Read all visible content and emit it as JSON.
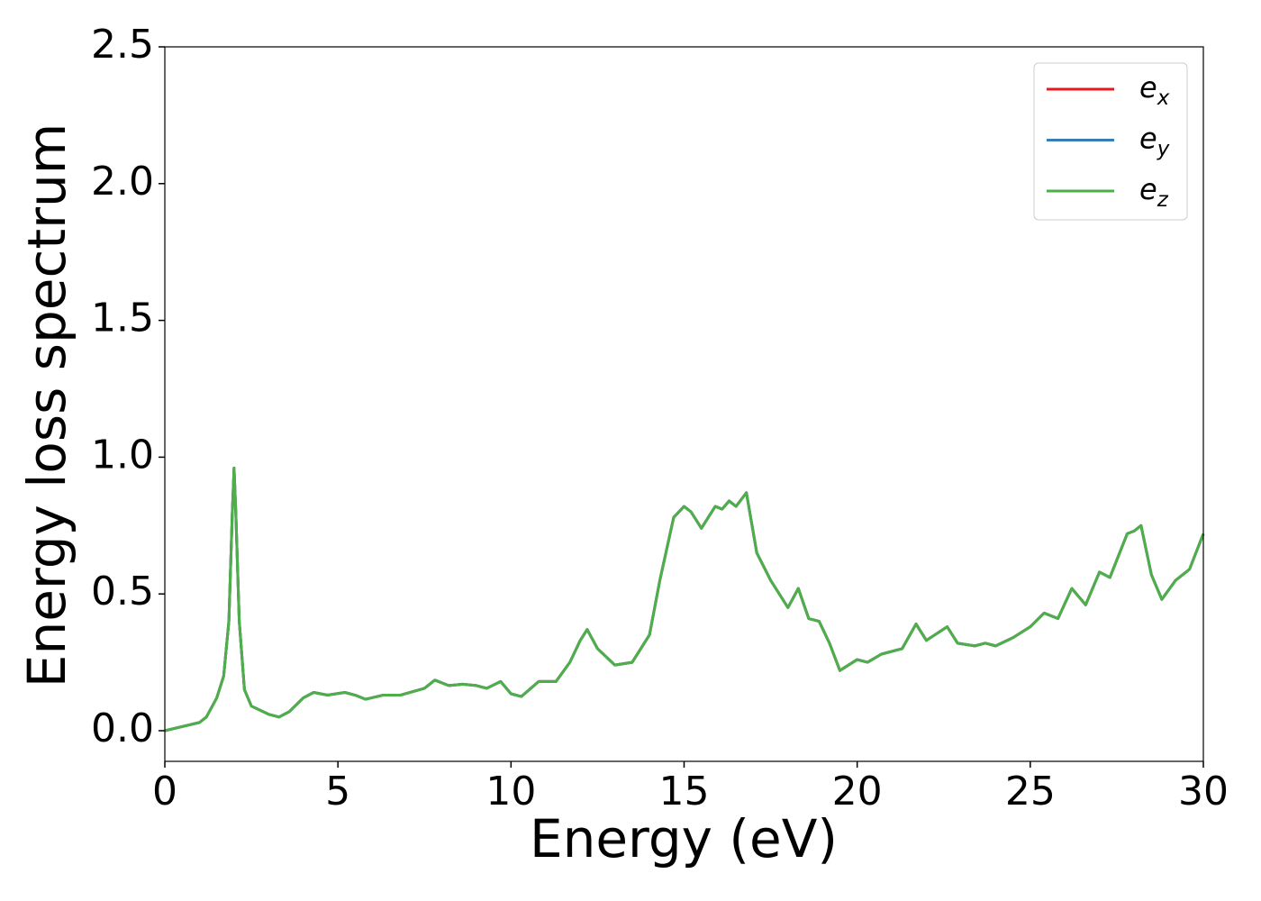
{
  "chart_data": {
    "type": "line",
    "xlabel": "Energy (eV)",
    "ylabel": "Energy loss spectrum",
    "x": [
      0,
      0.5,
      1.0,
      1.2,
      1.5,
      1.7,
      1.85,
      1.95,
      2.0,
      2.05,
      2.15,
      2.3,
      2.5,
      3.0,
      3.3,
      3.6,
      4.0,
      4.3,
      4.7,
      5.2,
      5.5,
      5.8,
      6.3,
      6.8,
      7.5,
      7.8,
      8.2,
      8.6,
      9.0,
      9.3,
      9.7,
      10.0,
      10.3,
      10.8,
      11.3,
      11.7,
      12.0,
      12.2,
      12.5,
      13.0,
      13.5,
      14.0,
      14.3,
      14.7,
      15.0,
      15.2,
      15.5,
      15.9,
      16.1,
      16.3,
      16.5,
      16.8,
      17.1,
      17.5,
      18.0,
      18.3,
      18.6,
      18.9,
      19.2,
      19.5,
      20.0,
      20.3,
      20.7,
      21.3,
      21.7,
      22.0,
      22.6,
      22.9,
      23.4,
      23.7,
      24.0,
      24.5,
      25.0,
      25.4,
      25.8,
      26.2,
      26.6,
      27.0,
      27.3,
      27.8,
      28.0,
      28.2,
      28.5,
      28.8,
      29.2,
      29.6,
      30.0
    ],
    "series": [
      {
        "name": "e_x",
        "color": "#e41a1c",
        "values": [
          0.0,
          0.015,
          0.03,
          0.05,
          0.12,
          0.2,
          0.4,
          0.8,
          0.96,
          0.8,
          0.4,
          0.15,
          0.09,
          0.06,
          0.05,
          0.07,
          0.12,
          0.14,
          0.13,
          0.14,
          0.13,
          0.115,
          0.13,
          0.13,
          0.155,
          0.185,
          0.165,
          0.17,
          0.165,
          0.155,
          0.18,
          0.135,
          0.125,
          0.18,
          0.18,
          0.25,
          0.33,
          0.37,
          0.3,
          0.24,
          0.25,
          0.35,
          0.55,
          0.78,
          0.82,
          0.8,
          0.74,
          0.82,
          0.81,
          0.84,
          0.82,
          0.87,
          0.65,
          0.55,
          0.45,
          0.52,
          0.41,
          0.4,
          0.32,
          0.22,
          0.26,
          0.25,
          0.28,
          0.3,
          0.39,
          0.33,
          0.38,
          0.32,
          0.31,
          0.32,
          0.31,
          0.34,
          0.38,
          0.43,
          0.41,
          0.52,
          0.46,
          0.58,
          0.56,
          0.72,
          0.73,
          0.75,
          0.57,
          0.48,
          0.55,
          0.59,
          0.72
        ]
      },
      {
        "name": "e_y",
        "color": "#377eb8",
        "values": [
          0.0,
          0.015,
          0.03,
          0.05,
          0.12,
          0.2,
          0.4,
          0.8,
          0.96,
          0.8,
          0.4,
          0.15,
          0.09,
          0.06,
          0.05,
          0.07,
          0.12,
          0.14,
          0.13,
          0.14,
          0.13,
          0.115,
          0.13,
          0.13,
          0.155,
          0.185,
          0.165,
          0.17,
          0.165,
          0.155,
          0.18,
          0.135,
          0.125,
          0.18,
          0.18,
          0.25,
          0.33,
          0.37,
          0.3,
          0.24,
          0.25,
          0.35,
          0.55,
          0.78,
          0.82,
          0.8,
          0.74,
          0.82,
          0.81,
          0.84,
          0.82,
          0.87,
          0.65,
          0.55,
          0.45,
          0.52,
          0.41,
          0.4,
          0.32,
          0.22,
          0.26,
          0.25,
          0.28,
          0.3,
          0.39,
          0.33,
          0.38,
          0.32,
          0.31,
          0.32,
          0.31,
          0.34,
          0.38,
          0.43,
          0.41,
          0.52,
          0.46,
          0.58,
          0.56,
          0.72,
          0.73,
          0.75,
          0.57,
          0.48,
          0.55,
          0.59,
          0.72
        ]
      },
      {
        "name": "e_z",
        "color": "#4daf4a",
        "values": [
          0.0,
          0.015,
          0.03,
          0.05,
          0.12,
          0.2,
          0.4,
          0.8,
          0.96,
          0.8,
          0.4,
          0.15,
          0.09,
          0.06,
          0.05,
          0.07,
          0.12,
          0.14,
          0.13,
          0.14,
          0.13,
          0.115,
          0.13,
          0.13,
          0.155,
          0.185,
          0.165,
          0.17,
          0.165,
          0.155,
          0.18,
          0.135,
          0.125,
          0.18,
          0.18,
          0.25,
          0.33,
          0.37,
          0.3,
          0.24,
          0.25,
          0.35,
          0.55,
          0.78,
          0.82,
          0.8,
          0.74,
          0.82,
          0.81,
          0.84,
          0.82,
          0.87,
          0.65,
          0.55,
          0.45,
          0.52,
          0.41,
          0.4,
          0.32,
          0.22,
          0.26,
          0.25,
          0.28,
          0.3,
          0.39,
          0.33,
          0.38,
          0.32,
          0.31,
          0.32,
          0.31,
          0.34,
          0.38,
          0.43,
          0.41,
          0.52,
          0.46,
          0.58,
          0.56,
          0.72,
          0.73,
          0.75,
          0.57,
          0.48,
          0.55,
          0.59,
          0.72
        ]
      }
    ],
    "xlim": [
      0,
      30
    ],
    "xticks": [
      0,
      5,
      10,
      15,
      20,
      25,
      30
    ],
    "ylim": [
      -0.112,
      2.5
    ],
    "yticks": [
      {
        "value": 0,
        "label": "0.0"
      },
      {
        "value": 0.5,
        "label": "0.5"
      },
      {
        "value": 1,
        "label": "1.0"
      },
      {
        "value": 1.5,
        "label": "1.5"
      },
      {
        "value": 2,
        "label": "2.0"
      },
      {
        "value": 2.5,
        "label": "2.5"
      }
    ],
    "legend": "upper right"
  }
}
